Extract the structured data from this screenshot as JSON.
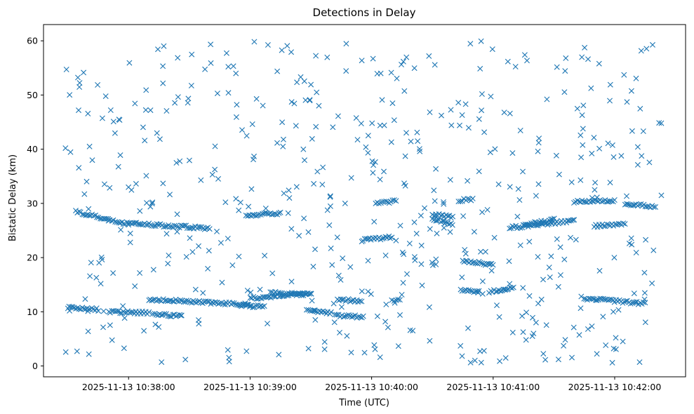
{
  "chart_data": {
    "type": "scatter",
    "title": "Detections in Delay",
    "xlabel": "Time (UTC)",
    "ylabel": "Bistatic Delay (km)",
    "marker": "x",
    "color": "#1f77b4",
    "grid": false,
    "xlim": [
      "2025-11-13 10:37:18",
      "2025-11-13 10:42:35"
    ],
    "ylim": [
      -2,
      63
    ],
    "x_ticks": [
      "2025-11-13 10:38:00",
      "2025-11-13 10:39:00",
      "2025-11-13 10:40:00",
      "2025-11-13 10:41:00",
      "2025-11-13 10:42:00"
    ],
    "y_ticks": [
      0,
      10,
      20,
      30,
      40,
      50,
      60
    ],
    "tracks": [
      {
        "t_start": "2025-11-13 10:37:30",
        "t_end": "2025-11-13 10:37:45",
        "y_start": 10.8,
        "y_end": 10.4
      },
      {
        "t_start": "2025-11-13 10:37:34",
        "t_end": "2025-11-13 10:37:50",
        "y_start": 28.5,
        "y_end": 27.0
      },
      {
        "t_start": "2025-11-13 10:37:50",
        "t_end": "2025-11-13 10:38:00",
        "y_start": 27.0,
        "y_end": 26.2
      },
      {
        "t_start": "2025-11-13 10:37:51",
        "t_end": "2025-11-13 10:38:10",
        "y_start": 10.0,
        "y_end": 9.8
      },
      {
        "t_start": "2025-11-13 10:38:00",
        "t_end": "2025-11-13 10:38:40",
        "y_start": 26.3,
        "y_end": 25.4
      },
      {
        "t_start": "2025-11-13 10:38:12",
        "t_end": "2025-11-13 10:38:26",
        "y_start": 9.6,
        "y_end": 9.2
      },
      {
        "t_start": "2025-11-13 10:38:10",
        "t_end": "2025-11-13 10:39:00",
        "y_start": 12.3,
        "y_end": 11.3
      },
      {
        "t_start": "2025-11-13 10:38:55",
        "t_end": "2025-11-13 10:39:07",
        "y_start": 11.2,
        "y_end": 10.9
      },
      {
        "t_start": "2025-11-13 10:38:58",
        "t_end": "2025-11-13 10:39:15",
        "y_start": 27.8,
        "y_end": 28.2
      },
      {
        "t_start": "2025-11-13 10:39:00",
        "t_end": "2025-11-13 10:39:30",
        "y_start": 12.5,
        "y_end": 13.5
      },
      {
        "t_start": "2025-11-13 10:39:10",
        "t_end": "2025-11-13 10:39:28",
        "y_start": 13.5,
        "y_end": 13.2
      },
      {
        "t_start": "2025-11-13 10:39:28",
        "t_end": "2025-11-13 10:39:40",
        "y_start": 10.2,
        "y_end": 9.7
      },
      {
        "t_start": "2025-11-13 10:39:43",
        "t_end": "2025-11-13 10:39:55",
        "y_start": 12.2,
        "y_end": 12.0
      },
      {
        "t_start": "2025-11-13 10:39:42",
        "t_end": "2025-11-13 10:39:56",
        "y_start": 9.4,
        "y_end": 9.0
      },
      {
        "t_start": "2025-11-13 10:39:55",
        "t_end": "2025-11-13 10:40:10",
        "y_start": 23.2,
        "y_end": 23.8
      },
      {
        "t_start": "2025-11-13 10:40:02",
        "t_end": "2025-11-13 10:40:12",
        "y_start": 30.0,
        "y_end": 30.4
      },
      {
        "t_start": "2025-11-13 10:40:10",
        "t_end": "2025-11-13 10:40:14",
        "y_start": 12.2,
        "y_end": 12.0
      },
      {
        "t_start": "2025-11-13 10:40:30",
        "t_end": "2025-11-13 10:40:40",
        "y_start": 28.0,
        "y_end": 27.4
      },
      {
        "t_start": "2025-11-13 10:40:30",
        "t_end": "2025-11-13 10:40:40",
        "y_start": 27.0,
        "y_end": 26.2
      },
      {
        "t_start": "2025-11-13 10:40:44",
        "t_end": "2025-11-13 10:40:53",
        "y_start": 14.0,
        "y_end": 13.7
      },
      {
        "t_start": "2025-11-13 10:40:43",
        "t_end": "2025-11-13 10:40:50",
        "y_start": 30.5,
        "y_end": 30.8
      },
      {
        "t_start": "2025-11-13 10:40:45",
        "t_end": "2025-11-13 10:41:00",
        "y_start": 19.5,
        "y_end": 18.6
      },
      {
        "t_start": "2025-11-13 10:40:58",
        "t_end": "2025-11-13 10:41:10",
        "y_start": 13.6,
        "y_end": 14.6
      },
      {
        "t_start": "2025-11-13 10:41:08",
        "t_end": "2025-11-13 10:41:40",
        "y_start": 25.5,
        "y_end": 26.8
      },
      {
        "t_start": "2025-11-13 10:41:15",
        "t_end": "2025-11-13 10:41:30",
        "y_start": 26.0,
        "y_end": 27.0
      },
      {
        "t_start": "2025-11-13 10:41:40",
        "t_end": "2025-11-13 10:42:00",
        "y_start": 30.3,
        "y_end": 30.5
      },
      {
        "t_start": "2025-11-13 10:41:45",
        "t_end": "2025-11-13 10:42:15",
        "y_start": 12.5,
        "y_end": 11.5
      },
      {
        "t_start": "2025-11-13 10:41:50",
        "t_end": "2025-11-13 10:42:05",
        "y_start": 25.8,
        "y_end": 26.3
      },
      {
        "t_start": "2025-11-13 10:42:05",
        "t_end": "2025-11-13 10:42:20",
        "y_start": 30.0,
        "y_end": 29.3
      }
    ],
    "scattered_points": {
      "t_start": "2025-11-13 10:37:28",
      "t_end": "2025-11-13 10:42:25",
      "y_min": 0.5,
      "y_max": 60,
      "count": 520
    }
  }
}
